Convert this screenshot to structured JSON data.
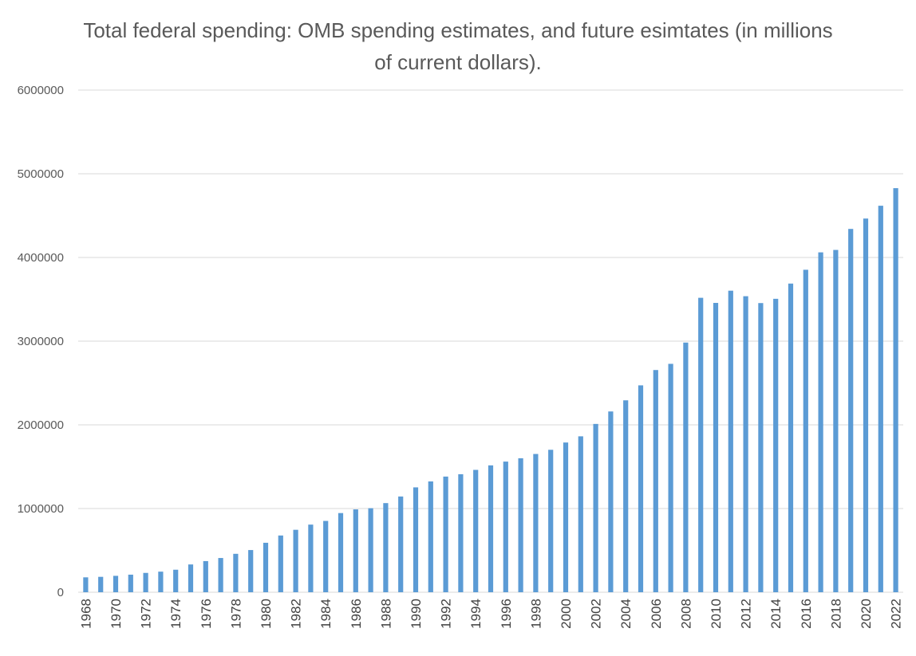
{
  "chart_data": {
    "type": "bar",
    "title": "Total federal spending: OMB spending estimates, and future esimtates (in millions of current dollars).",
    "xlabel": "",
    "ylabel": "",
    "ylim": [
      0,
      6000000
    ],
    "yticks": [
      0,
      1000000,
      2000000,
      3000000,
      4000000,
      5000000,
      6000000
    ],
    "grid": true,
    "legend": "none",
    "color": "#5b9bd5",
    "categories": [
      "1968",
      "1969",
      "1970",
      "1971",
      "1972",
      "1973",
      "1974",
      "1975",
      "1976",
      "1977",
      "1978",
      "1979",
      "1980",
      "1981",
      "1982",
      "1983",
      "1984",
      "1985",
      "1986",
      "1987",
      "1988",
      "1989",
      "1990",
      "1991",
      "1992",
      "1993",
      "1994",
      "1995",
      "1996",
      "1997",
      "1998",
      "1999",
      "2000",
      "2001",
      "2002",
      "2003",
      "2004",
      "2005",
      "2006",
      "2007",
      "2008",
      "2009",
      "2010",
      "2011",
      "2012",
      "2013",
      "2014",
      "2015",
      "2016",
      "2017",
      "2018",
      "2019",
      "2020",
      "2021",
      "2022"
    ],
    "tick_labels": [
      "1968",
      "1970",
      "1972",
      "1974",
      "1976",
      "1978",
      "1980",
      "1982",
      "1984",
      "1986",
      "1988",
      "1990",
      "1992",
      "1994",
      "1996",
      "1998",
      "2000",
      "2002",
      "2004",
      "2006",
      "2008",
      "2010",
      "2012",
      "2014",
      "2016",
      "2018",
      "2020",
      "2022"
    ],
    "values": [
      178000,
      184000,
      196000,
      210000,
      231000,
      246000,
      269000,
      332000,
      372000,
      409000,
      459000,
      504000,
      591000,
      678000,
      746000,
      808000,
      852000,
      946000,
      990000,
      1004000,
      1065000,
      1144000,
      1253000,
      1324000,
      1382000,
      1410000,
      1462000,
      1516000,
      1561000,
      1601000,
      1652000,
      1702000,
      1789000,
      1863000,
      2011000,
      2160000,
      2293000,
      2472000,
      2655000,
      2729000,
      2983000,
      3518000,
      3457000,
      3603000,
      3537000,
      3455000,
      3506000,
      3688000,
      3853000,
      4061000,
      4090000,
      4341000,
      4465000,
      4618000,
      4828000
    ]
  }
}
